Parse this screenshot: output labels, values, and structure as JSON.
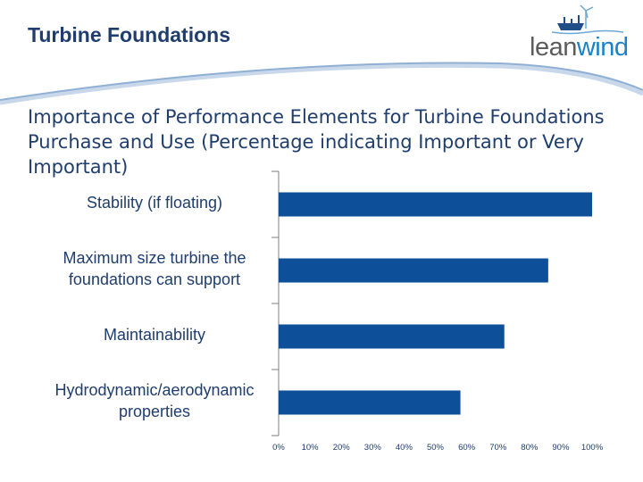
{
  "header": {
    "title": "Turbine Foundations"
  },
  "logo": {
    "lean": "lean",
    "wind": "wind",
    "colors": {
      "lean": "#5b5b5b",
      "wind": "#1a82c7"
    }
  },
  "colors": {
    "bar": "#0e4f99",
    "text": "#1f3d6d",
    "axis": "#7f7f7f"
  },
  "chart_data": {
    "type": "bar",
    "orientation": "horizontal",
    "title": "Importance of Performance Elements for Turbine Foundations Purchase and Use (Percentage indicating Important or Very Important)",
    "categories": [
      "Stability (if floating)",
      "Maximum size turbine the foundations can support",
      "Maintainability",
      "Hydrodynamic/aerodynamic properties"
    ],
    "values": [
      100,
      86,
      72,
      58
    ],
    "xlim": [
      0,
      100
    ],
    "xticks": [
      "0%",
      "10%",
      "20%",
      "30%",
      "40%",
      "50%",
      "60%",
      "70%",
      "80%",
      "90%",
      "100%"
    ],
    "grid": false,
    "legend": "none"
  }
}
